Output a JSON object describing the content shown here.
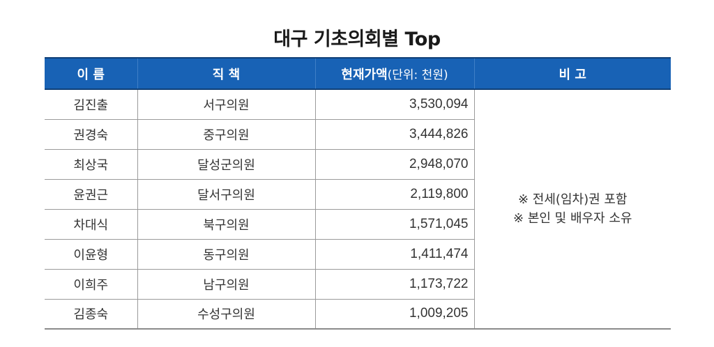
{
  "title": "대구 기초의회별 Top",
  "table": {
    "headers": {
      "name": "이 름",
      "position": "직 책",
      "amount": "현재가액",
      "amount_unit": "(단위: 천원)",
      "note": "비 고"
    },
    "rows": [
      {
        "name": "김진출",
        "position": "서구의원",
        "amount": "3,530,094"
      },
      {
        "name": "권경숙",
        "position": "중구의원",
        "amount": "3,444,826"
      },
      {
        "name": "최상국",
        "position": "달성군의원",
        "amount": "2,948,070"
      },
      {
        "name": "윤권근",
        "position": "달서구의원",
        "amount": "2,119,800"
      },
      {
        "name": "차대식",
        "position": "북구의원",
        "amount": "1,571,045"
      },
      {
        "name": "이윤형",
        "position": "동구의원",
        "amount": "1,411,474"
      },
      {
        "name": "이희주",
        "position": "남구의원",
        "amount": "1,173,722"
      },
      {
        "name": "김종숙",
        "position": "수성구의원",
        "amount": "1,009,205"
      }
    ],
    "notes": [
      "※ 전세(임차)권 포함",
      "※ 본인 및 배우자 소유"
    ]
  },
  "colors": {
    "header_bg": "#1862b5",
    "header_text": "#ffffff"
  }
}
